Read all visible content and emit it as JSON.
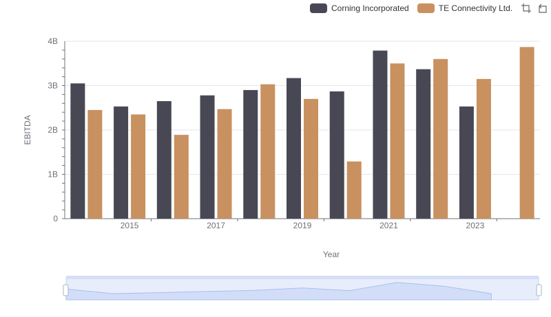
{
  "legend": {
    "items": [
      {
        "label": "Corning Incorporated",
        "color": "#484855"
      },
      {
        "label": "TE Connectivity Ltd.",
        "color": "#c8915f"
      }
    ],
    "tools": [
      "crop-icon",
      "restore-icon"
    ]
  },
  "chart_data": {
    "type": "bar",
    "xlabel": "Year",
    "ylabel": "EBITDA",
    "ylim": [
      0,
      4000000000
    ],
    "y_ticks": [
      "0",
      "1B",
      "2B",
      "3B",
      "4B"
    ],
    "x_tick_labels": [
      "2015",
      "2017",
      "2019",
      "2021",
      "2023"
    ],
    "categories": [
      "2014",
      "2015",
      "2016",
      "2017",
      "2018",
      "2019",
      "2020",
      "2021",
      "2022",
      "2023",
      "2024"
    ],
    "series": [
      {
        "name": "Corning Incorporated",
        "color": "#484855",
        "values": [
          3050000000,
          2530000000,
          2650000000,
          2780000000,
          2900000000,
          3170000000,
          2870000000,
          3790000000,
          3370000000,
          2530000000,
          null
        ]
      },
      {
        "name": "TE Connectivity Ltd.",
        "color": "#c8915f",
        "values": [
          2450000000,
          2350000000,
          1890000000,
          2470000000,
          3030000000,
          2700000000,
          1290000000,
          3500000000,
          3600000000,
          3150000000,
          3870000000
        ]
      }
    ],
    "grid": true,
    "legend_position": "top-right"
  }
}
